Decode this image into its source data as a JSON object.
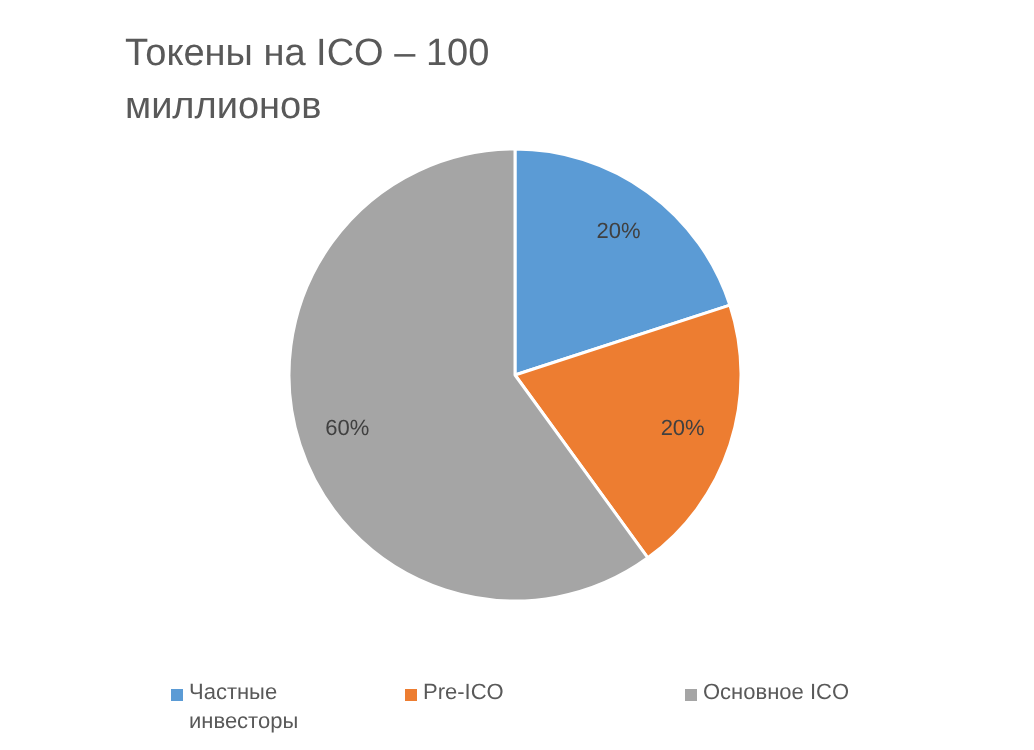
{
  "chart_data": {
    "type": "pie",
    "title": "Токены на ICO – 100 миллионов",
    "categories": [
      "Частные инвесторы",
      "Pre-ICO",
      "Основное ICO"
    ],
    "values": [
      20,
      20,
      60
    ],
    "colors": [
      "#5b9bd5",
      "#ed7d31",
      "#a5a5a5"
    ],
    "value_labels": [
      "20%",
      "20%",
      "60%"
    ],
    "legend": "bottom"
  }
}
